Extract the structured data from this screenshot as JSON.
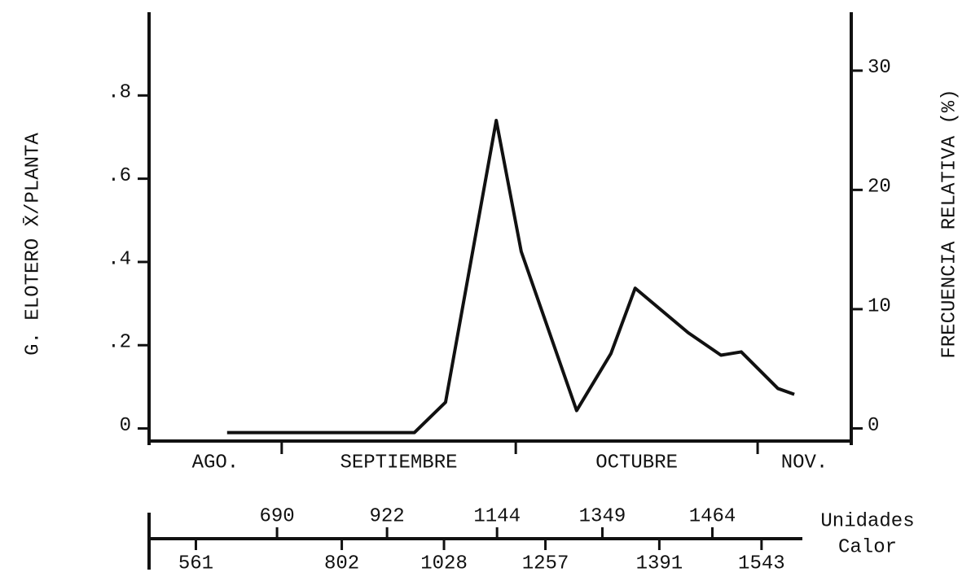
{
  "chart_data": {
    "type": "line",
    "ylabel": "G. ELOTERO X̄/PLANTA",
    "y2label": "FRECUENCIA RELATIVA (%)",
    "x": [
      10,
      34,
      38,
      44.5,
      47.7,
      54.8,
      59.2,
      62.3,
      69.1,
      73.3,
      75.9,
      80.6,
      82.7
    ],
    "values": [
      -0.01,
      -0.01,
      0.063,
      0.74,
      0.425,
      0.043,
      0.18,
      0.337,
      0.23,
      0.176,
      0.184,
      0.096,
      0.082
    ],
    "color": "#111111",
    "xlim": [
      0,
      90
    ],
    "ylim": [
      -0.04,
      1.0
    ],
    "yticks": [
      0,
      {
        "value": 0.2,
        "label": ".2"
      },
      {
        "value": 0.4,
        "label": ".4"
      },
      {
        "value": 0.6,
        "label": ".6"
      },
      {
        "value": 0.8,
        "label": ".8"
      }
    ],
    "y2lim": [
      -1.4,
      34.9
    ],
    "y2ticks": [
      0,
      10,
      20,
      30
    ],
    "months": [
      "AGO.",
      "SEPTIEMBRE",
      "OCTUBRE",
      "NOV."
    ],
    "month_dividers": [
      17,
      47,
      78
    ],
    "heat_units_label": [
      "Unidades",
      "Calor"
    ],
    "heat_units": [
      {
        "x": 6,
        "units": 561
      },
      {
        "x": 16.4,
        "units": 690
      },
      {
        "x": 24.7,
        "units": 802
      },
      {
        "x": 30.5,
        "units": 922
      },
      {
        "x": 37.8,
        "units": 1028
      },
      {
        "x": 44.6,
        "units": 1144
      },
      {
        "x": 50.8,
        "units": 1257
      },
      {
        "x": 58.1,
        "units": 1349
      },
      {
        "x": 65.4,
        "units": 1391
      },
      {
        "x": 72.2,
        "units": 1464
      },
      {
        "x": 78.5,
        "units": 1543
      }
    ]
  }
}
